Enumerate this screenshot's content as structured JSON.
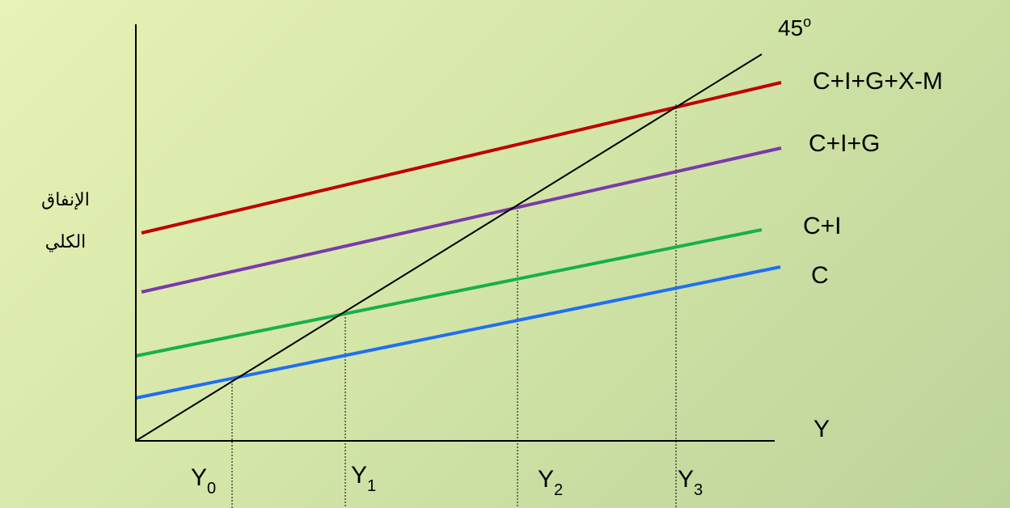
{
  "diagram": {
    "y_axis_label": [
      "الإنفاق",
      "الكلي"
    ],
    "x_axis_label": "Y",
    "angle_label": {
      "value": "45",
      "sup": "o"
    },
    "colors": {
      "background": "#d9eaa9",
      "axis": "#000000",
      "line_45": "#000000",
      "C": "#1f6ff0",
      "C+I": "#18b04a",
      "C+I+G": "#7a3aa8",
      "C+I+G+X-M": "#c00000"
    },
    "lines": [
      {
        "id": "C",
        "label": "C"
      },
      {
        "id": "C+I",
        "label": "C+I"
      },
      {
        "id": "C+I+G",
        "label": "C+I+G"
      },
      {
        "id": "C+I+G+X-M",
        "label": "C+I+G+X-M"
      }
    ],
    "equilibria": [
      {
        "base": "Y",
        "sub": "0"
      },
      {
        "base": "Y",
        "sub": "1"
      },
      {
        "base": "Y",
        "sub": "2"
      },
      {
        "base": "Y",
        "sub": "3"
      }
    ]
  }
}
